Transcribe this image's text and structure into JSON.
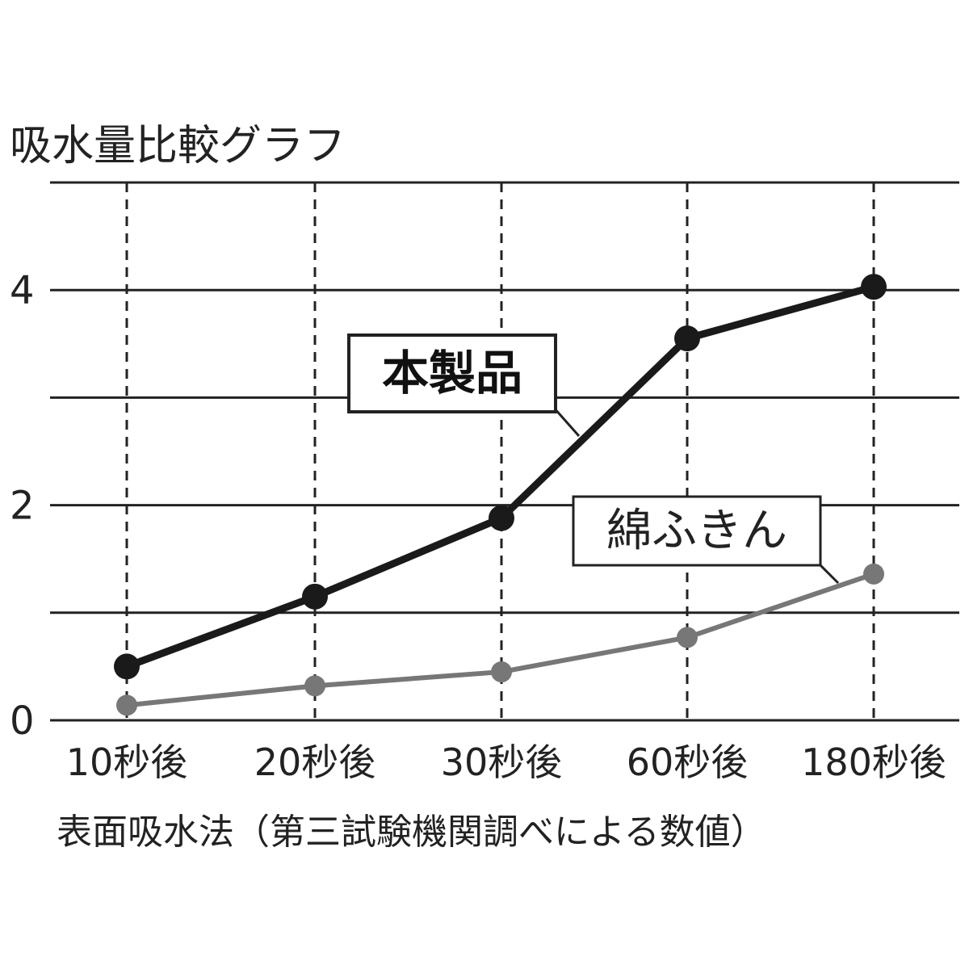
{
  "chart_data": {
    "type": "line",
    "title": "吸水量比較グラフ",
    "xlabel": "表面吸水法（第三試験機関調べによる数値）",
    "ylabel": "",
    "categories": [
      "10秒後",
      "20秒後",
      "30秒後",
      "60秒後",
      "180秒後"
    ],
    "y_ticks": [
      {
        "value": 0,
        "label": "0"
      },
      {
        "value": 2,
        "label": "2"
      },
      {
        "value": 4,
        "label": "4"
      }
    ],
    "ylim": [
      0,
      5
    ],
    "grid_values": [
      0,
      1,
      2,
      3,
      4,
      5
    ],
    "grid": true,
    "series": [
      {
        "name": "本製品",
        "values": [
          0.5,
          1.15,
          1.88,
          3.55,
          4.03
        ],
        "color": "#1a1a1a",
        "label_style": "bold"
      },
      {
        "name": "綿ふきん",
        "values": [
          0.14,
          0.32,
          0.45,
          0.77,
          1.36
        ],
        "color": "#777777",
        "label_style": "normal"
      }
    ]
  }
}
